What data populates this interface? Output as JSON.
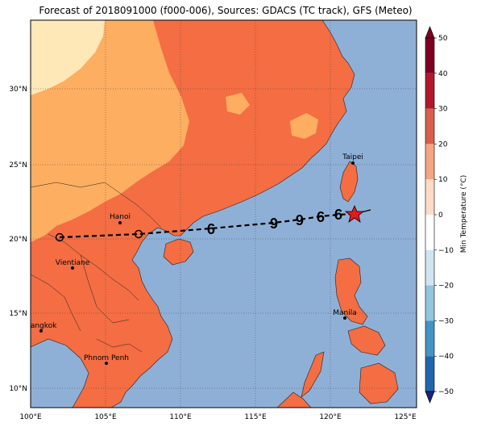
{
  "title": "Forecast of 2018091000 (f000-006), Sources: GDACS (TC track), GFS (Meteo)",
  "colorbar": {
    "label": "Min Temperature (°C)",
    "ticks": [
      "50",
      "40",
      "30",
      "20",
      "10",
      "0",
      "−10",
      "−20",
      "−30",
      "−40",
      "−50"
    ],
    "colors": [
      "#7e0023",
      "#b2182b",
      "#d6604d",
      "#f4a582",
      "#fddbc7",
      "#ffffff",
      "#d1e5f0",
      "#92c5de",
      "#4393c3",
      "#2166ac",
      "#1a237e"
    ]
  },
  "axes": {
    "lon_labels": [
      "100°E",
      "105°E",
      "110°E",
      "115°E",
      "120°E",
      "125°E"
    ],
    "lat_labels": [
      "30°N",
      "25°N",
      "20°N",
      "15°N",
      "10°N"
    ]
  },
  "cities": [
    {
      "name": "Taipei"
    },
    {
      "name": "Hanoi"
    },
    {
      "name": "Vientiane"
    },
    {
      "name": "Manila"
    },
    {
      "name": "Bangkok"
    },
    {
      "name": "Phnom Penh"
    }
  ],
  "colors": {
    "sea": "#8fb0d6",
    "land_warm": "#f46d43",
    "land_mild": "#fdae61",
    "land_cool": "#fee8b8",
    "track": "#000000",
    "storm_marker": "#e31a1c"
  },
  "icons": {
    "current_position": "red-star-icon",
    "forecast_position": "tropical-cyclone-icon",
    "past_position": "open-circle-icon"
  }
}
